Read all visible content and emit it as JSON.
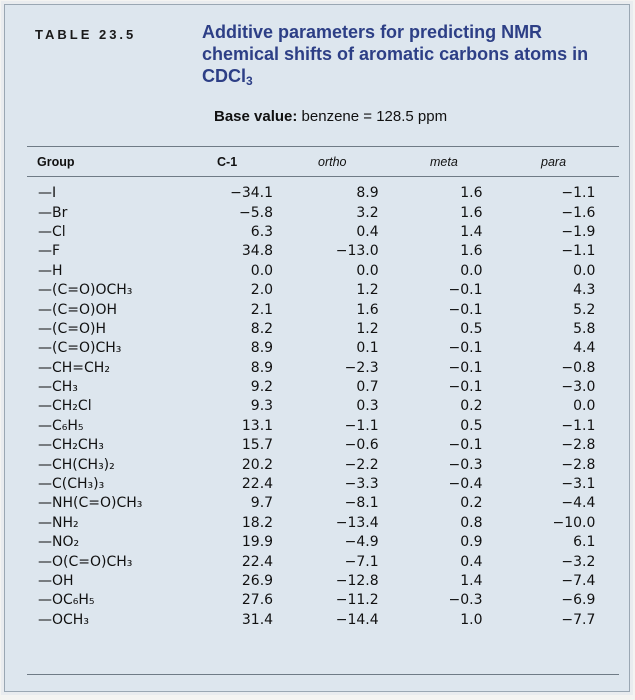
{
  "table_label": "TABLE 23.5",
  "title_main": "Additive parameters for predicting NMR chemical shifts of aromatic carbons atoms in CDCl",
  "title_sub": "3",
  "base_bold": "Base value:",
  "base_rest": " benzene = 128.5 ppm",
  "headers": {
    "group": "Group",
    "c1": "C-1",
    "ortho": "ortho",
    "meta": "meta",
    "para": "para"
  },
  "rows": [
    {
      "group": "—I",
      "c1": "−34.1",
      "ortho": "8.9",
      "meta": "1.6",
      "para": "−1.1"
    },
    {
      "group": "—Br",
      "c1": "−5.8",
      "ortho": "3.2",
      "meta": "1.6",
      "para": "−1.6"
    },
    {
      "group": "—Cl",
      "c1": "6.3",
      "ortho": "0.4",
      "meta": "1.4",
      "para": "−1.9"
    },
    {
      "group": "—F",
      "c1": "34.8",
      "ortho": "−13.0",
      "meta": "1.6",
      "para": "−1.1"
    },
    {
      "group": "—H",
      "c1": "0.0",
      "ortho": "0.0",
      "meta": "0.0",
      "para": "0.0"
    },
    {
      "group": "—(C=O)OCH₃",
      "c1": "2.0",
      "ortho": "1.2",
      "meta": "−0.1",
      "para": "4.3"
    },
    {
      "group": "—(C=O)OH",
      "c1": "2.1",
      "ortho": "1.6",
      "meta": "−0.1",
      "para": "5.2"
    },
    {
      "group": "—(C=O)H",
      "c1": "8.2",
      "ortho": "1.2",
      "meta": "0.5",
      "para": "5.8"
    },
    {
      "group": "—(C=O)CH₃",
      "c1": "8.9",
      "ortho": "0.1",
      "meta": "−0.1",
      "para": "4.4"
    },
    {
      "group": "—CH=CH₂",
      "c1": "8.9",
      "ortho": "−2.3",
      "meta": "−0.1",
      "para": "−0.8"
    },
    {
      "group": "—CH₃",
      "c1": "9.2",
      "ortho": "0.7",
      "meta": "−0.1",
      "para": "−3.0"
    },
    {
      "group": "—CH₂Cl",
      "c1": "9.3",
      "ortho": "0.3",
      "meta": "0.2",
      "para": "0.0"
    },
    {
      "group": "—C₆H₅",
      "c1": "13.1",
      "ortho": "−1.1",
      "meta": "0.5",
      "para": "−1.1"
    },
    {
      "group": "—CH₂CH₃",
      "c1": "15.7",
      "ortho": "−0.6",
      "meta": "−0.1",
      "para": "−2.8"
    },
    {
      "group": "—CH(CH₃)₂",
      "c1": "20.2",
      "ortho": "−2.2",
      "meta": "−0.3",
      "para": "−2.8"
    },
    {
      "group": "—C(CH₃)₃",
      "c1": "22.4",
      "ortho": "−3.3",
      "meta": "−0.4",
      "para": "−3.1"
    },
    {
      "group": "—NH(C=O)CH₃",
      "c1": "9.7",
      "ortho": "−8.1",
      "meta": "0.2",
      "para": "−4.4"
    },
    {
      "group": "—NH₂",
      "c1": "18.2",
      "ortho": "−13.4",
      "meta": "0.8",
      "para": "−10.0"
    },
    {
      "group": "—NO₂",
      "c1": "19.9",
      "ortho": "−4.9",
      "meta": "0.9",
      "para": "6.1"
    },
    {
      "group": "—O(C=O)CH₃",
      "c1": "22.4",
      "ortho": "−7.1",
      "meta": "0.4",
      "para": "−3.2"
    },
    {
      "group": "—OH",
      "c1": "26.9",
      "ortho": "−12.8",
      "meta": "1.4",
      "para": "−7.4"
    },
    {
      "group": "—OC₆H₅",
      "c1": "27.6",
      "ortho": "−11.2",
      "meta": "−0.3",
      "para": "−6.9"
    },
    {
      "group": "—OCH₃",
      "c1": "31.4",
      "ortho": "−14.4",
      "meta": "1.0",
      "para": "−7.7"
    }
  ]
}
